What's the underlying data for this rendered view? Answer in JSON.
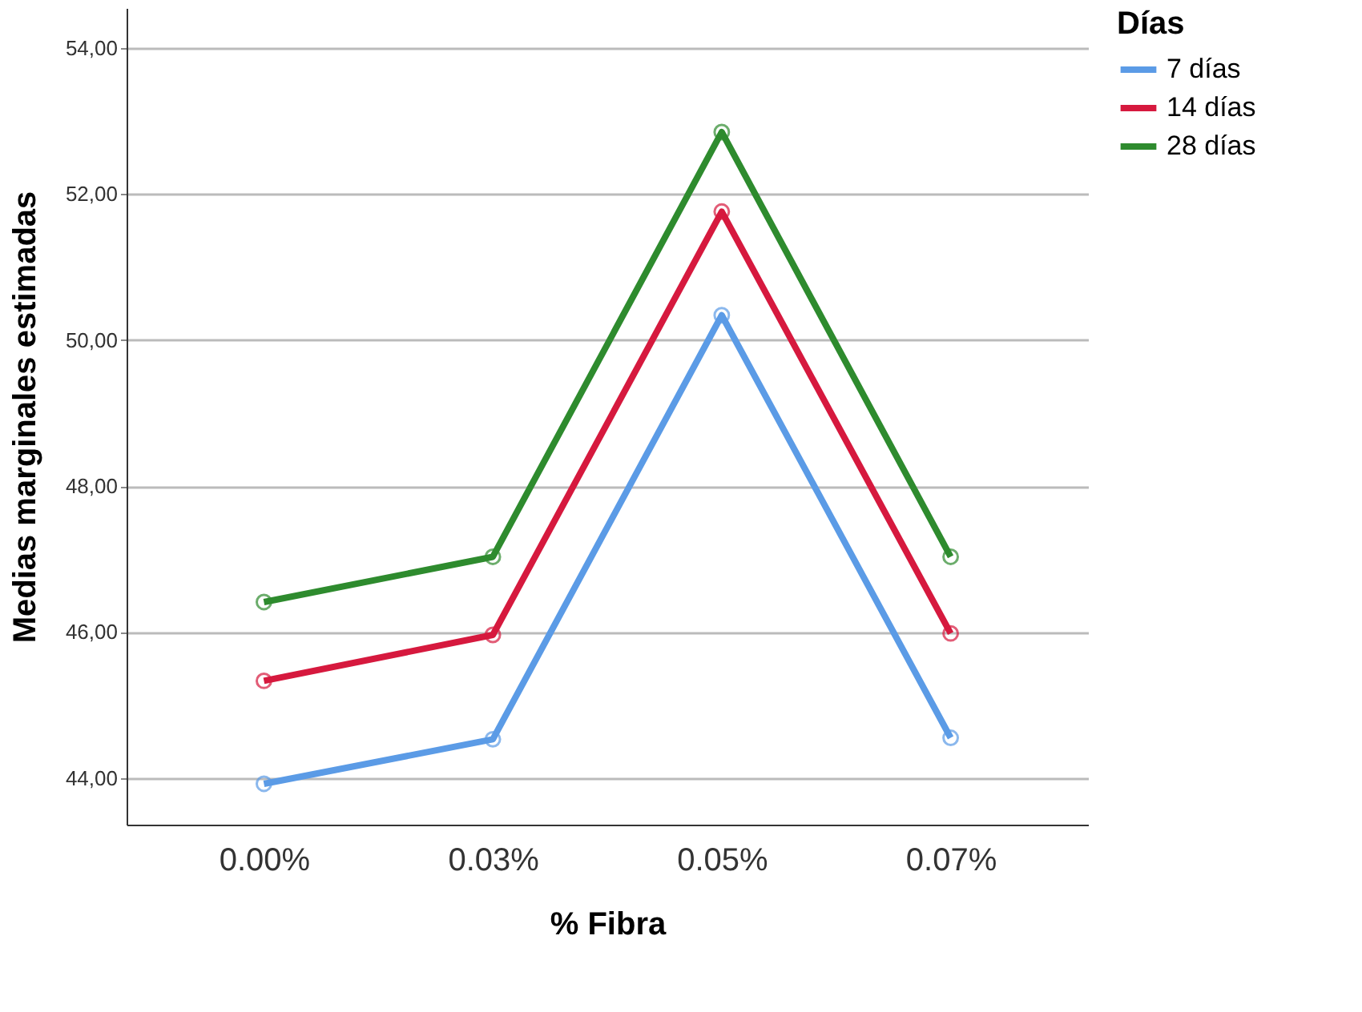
{
  "chart_data": {
    "type": "line",
    "xlabel": "% Fibra",
    "ylabel": "Medias marginales estimadas",
    "legend_title": "Días",
    "categories": [
      "0.00%",
      "0.03%",
      "0.05%",
      "0.07%"
    ],
    "series": [
      {
        "name": "7 días",
        "color": "#5b9be6",
        "values": [
          43.92,
          44.53,
          50.34,
          44.55
        ]
      },
      {
        "name": "14 días",
        "color": "#d6193e",
        "values": [
          45.33,
          45.96,
          51.76,
          45.98
        ]
      },
      {
        "name": "28 días",
        "color": "#2e8b2e",
        "values": [
          46.41,
          47.03,
          52.85,
          47.03
        ]
      }
    ],
    "ylim": [
      43.36,
      54.55
    ],
    "yticks": [
      {
        "value": 44,
        "label": "44,00"
      },
      {
        "value": 46,
        "label": "46,00"
      },
      {
        "value": 48,
        "label": "48,00"
      },
      {
        "value": 50,
        "label": "50,00"
      },
      {
        "value": 52,
        "label": "52,00"
      },
      {
        "value": 54,
        "label": "54,00"
      }
    ],
    "grid": "y",
    "legend": "top right",
    "marker": "circle",
    "line_style": "solid"
  }
}
